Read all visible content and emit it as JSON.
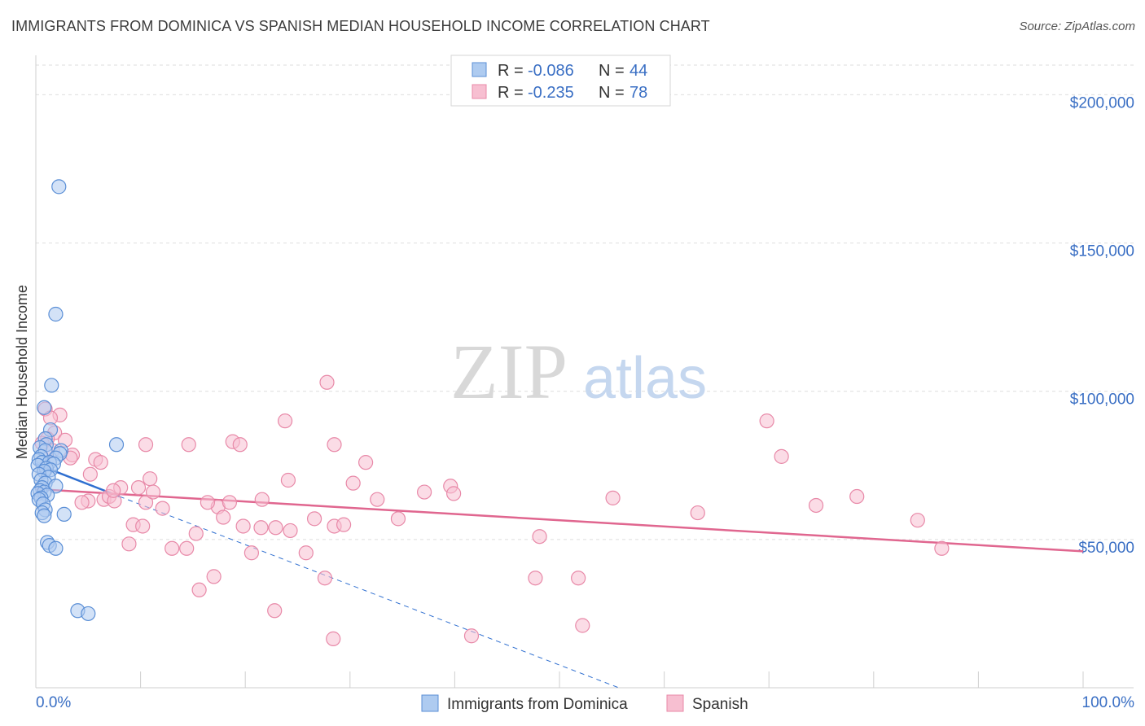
{
  "title": "IMMIGRANTS FROM DOMINICA VS SPANISH MEDIAN HOUSEHOLD INCOME CORRELATION CHART",
  "source": "Source: ZipAtlas.com",
  "watermark": {
    "zip": "ZIP",
    "atlas": "atlas"
  },
  "colors": {
    "blue_fill": "#aecbf0",
    "blue_stroke": "#5b8fd6",
    "blue_line": "#2f6fd0",
    "pink_fill": "#f7bfd1",
    "pink_stroke": "#e889a8",
    "pink_line": "#e0668f",
    "grid": "#dedede",
    "tick": "#3a6fc4"
  },
  "legend": {
    "rows": [
      {
        "r_label": "R =",
        "r_value": "-0.086",
        "n_label": "N =",
        "n_value": "44"
      },
      {
        "r_label": "R =",
        "r_value": "-0.235",
        "n_label": "N =",
        "n_value": "78"
      }
    ]
  },
  "chart_data": {
    "type": "scatter",
    "title": "IMMIGRANTS FROM DOMINICA VS SPANISH MEDIAN HOUSEHOLD INCOME CORRELATION CHART",
    "xlabel": "",
    "ylabel": "Median Household Income",
    "xlim": [
      0,
      100
    ],
    "ylim": [
      0,
      210000
    ],
    "x_tick_labels": [
      "0.0%",
      "100.0%"
    ],
    "y_ticks": [
      50000,
      100000,
      150000,
      200000
    ],
    "y_tick_labels": [
      "$50,000",
      "$100,000",
      "$150,000",
      "$200,000"
    ],
    "grid": true,
    "series": [
      {
        "name": "Immigrants from Dominica",
        "color": "#5b8fd6",
        "r": -0.086,
        "n": 44,
        "trend": {
          "solid": [
            [
              0,
              75500
            ],
            [
              8,
              64500
            ]
          ],
          "dashed": [
            [
              8,
              64500
            ],
            [
              100,
              -60000
            ]
          ]
        },
        "points": [
          [
            2.2,
            169000
          ],
          [
            1.9,
            126000
          ],
          [
            1.5,
            102000
          ],
          [
            0.8,
            94500
          ],
          [
            1.4,
            87000
          ],
          [
            0.9,
            84000
          ],
          [
            1.0,
            82000
          ],
          [
            7.7,
            82000
          ],
          [
            0.4,
            81000
          ],
          [
            0.9,
            80000
          ],
          [
            2.4,
            80000
          ],
          [
            2.3,
            79000
          ],
          [
            0.5,
            78000
          ],
          [
            1.9,
            77500
          ],
          [
            0.3,
            77000
          ],
          [
            0.6,
            76000
          ],
          [
            1.3,
            76000
          ],
          [
            1.7,
            75500
          ],
          [
            0.2,
            75000
          ],
          [
            1.0,
            74000
          ],
          [
            1.4,
            73500
          ],
          [
            0.8,
            73000
          ],
          [
            0.3,
            72000
          ],
          [
            1.2,
            71000
          ],
          [
            0.5,
            70000
          ],
          [
            0.9,
            69000
          ],
          [
            1.9,
            68000
          ],
          [
            0.6,
            67500
          ],
          [
            0.4,
            66500
          ],
          [
            0.8,
            66000
          ],
          [
            0.2,
            65500
          ],
          [
            1.1,
            65000
          ],
          [
            0.5,
            64000
          ],
          [
            0.3,
            63500
          ],
          [
            0.7,
            62000
          ],
          [
            0.9,
            60000
          ],
          [
            0.6,
            59000
          ],
          [
            2.7,
            58500
          ],
          [
            0.8,
            58000
          ],
          [
            1.1,
            49000
          ],
          [
            1.3,
            48000
          ],
          [
            1.9,
            47000
          ],
          [
            4.0,
            26000
          ],
          [
            5.0,
            25000
          ]
        ]
      },
      {
        "name": "Spanish",
        "color": "#e889a8",
        "r": -0.235,
        "n": 78,
        "trend": {
          "solid": [
            [
              0,
              67000
            ],
            [
              100,
              46000
            ]
          ]
        },
        "points": [
          [
            0.9,
            94000
          ],
          [
            2.3,
            92000
          ],
          [
            1.4,
            91000
          ],
          [
            1.8,
            86000
          ],
          [
            1.1,
            84000
          ],
          [
            2.8,
            83500
          ],
          [
            0.6,
            82500
          ],
          [
            1.6,
            80000
          ],
          [
            3.5,
            78500
          ],
          [
            3.3,
            77500
          ],
          [
            5.7,
            77000
          ],
          [
            6.2,
            76000
          ],
          [
            5.2,
            72000
          ],
          [
            6.5,
            63500
          ],
          [
            5.0,
            63000
          ],
          [
            4.4,
            62500
          ],
          [
            7.0,
            64500
          ],
          [
            7.5,
            63000
          ],
          [
            8.1,
            67500
          ],
          [
            7.4,
            66500
          ],
          [
            9.8,
            67500
          ],
          [
            10.5,
            62500
          ],
          [
            10.9,
            70500
          ],
          [
            12.1,
            60500
          ],
          [
            11.2,
            66000
          ],
          [
            10.5,
            82000
          ],
          [
            14.6,
            82000
          ],
          [
            18.8,
            83000
          ],
          [
            19.5,
            82000
          ],
          [
            14.4,
            47000
          ],
          [
            13.0,
            47000
          ],
          [
            15.3,
            52000
          ],
          [
            9.3,
            55000
          ],
          [
            8.9,
            48500
          ],
          [
            10.2,
            54500
          ],
          [
            17.4,
            61000
          ],
          [
            16.4,
            62500
          ],
          [
            18.5,
            62500
          ],
          [
            17.9,
            57500
          ],
          [
            19.8,
            54500
          ],
          [
            21.5,
            54000
          ],
          [
            22.9,
            54000
          ],
          [
            24.3,
            53000
          ],
          [
            20.6,
            45500
          ],
          [
            24.1,
            70000
          ],
          [
            25.8,
            45500
          ],
          [
            26.6,
            57000
          ],
          [
            28.5,
            54500
          ],
          [
            29.4,
            55000
          ],
          [
            28.5,
            82000
          ],
          [
            27.8,
            103000
          ],
          [
            30.3,
            69000
          ],
          [
            31.5,
            76000
          ],
          [
            32.6,
            63500
          ],
          [
            34.6,
            57000
          ],
          [
            23.8,
            90000
          ],
          [
            21.6,
            63500
          ],
          [
            37.1,
            66000
          ],
          [
            39.6,
            68000
          ],
          [
            39.9,
            65500
          ],
          [
            22.8,
            26000
          ],
          [
            27.6,
            37000
          ],
          [
            28.4,
            16500
          ],
          [
            41.6,
            17500
          ],
          [
            48.1,
            51000
          ],
          [
            47.7,
            37000
          ],
          [
            51.8,
            37000
          ],
          [
            52.2,
            21000
          ],
          [
            55.1,
            64000
          ],
          [
            63.2,
            59000
          ],
          [
            69.8,
            90000
          ],
          [
            71.2,
            78000
          ],
          [
            74.5,
            61500
          ],
          [
            78.4,
            64500
          ],
          [
            84.2,
            56500
          ],
          [
            86.5,
            47000
          ],
          [
            15.6,
            33000
          ],
          [
            17.0,
            37500
          ]
        ]
      }
    ]
  }
}
